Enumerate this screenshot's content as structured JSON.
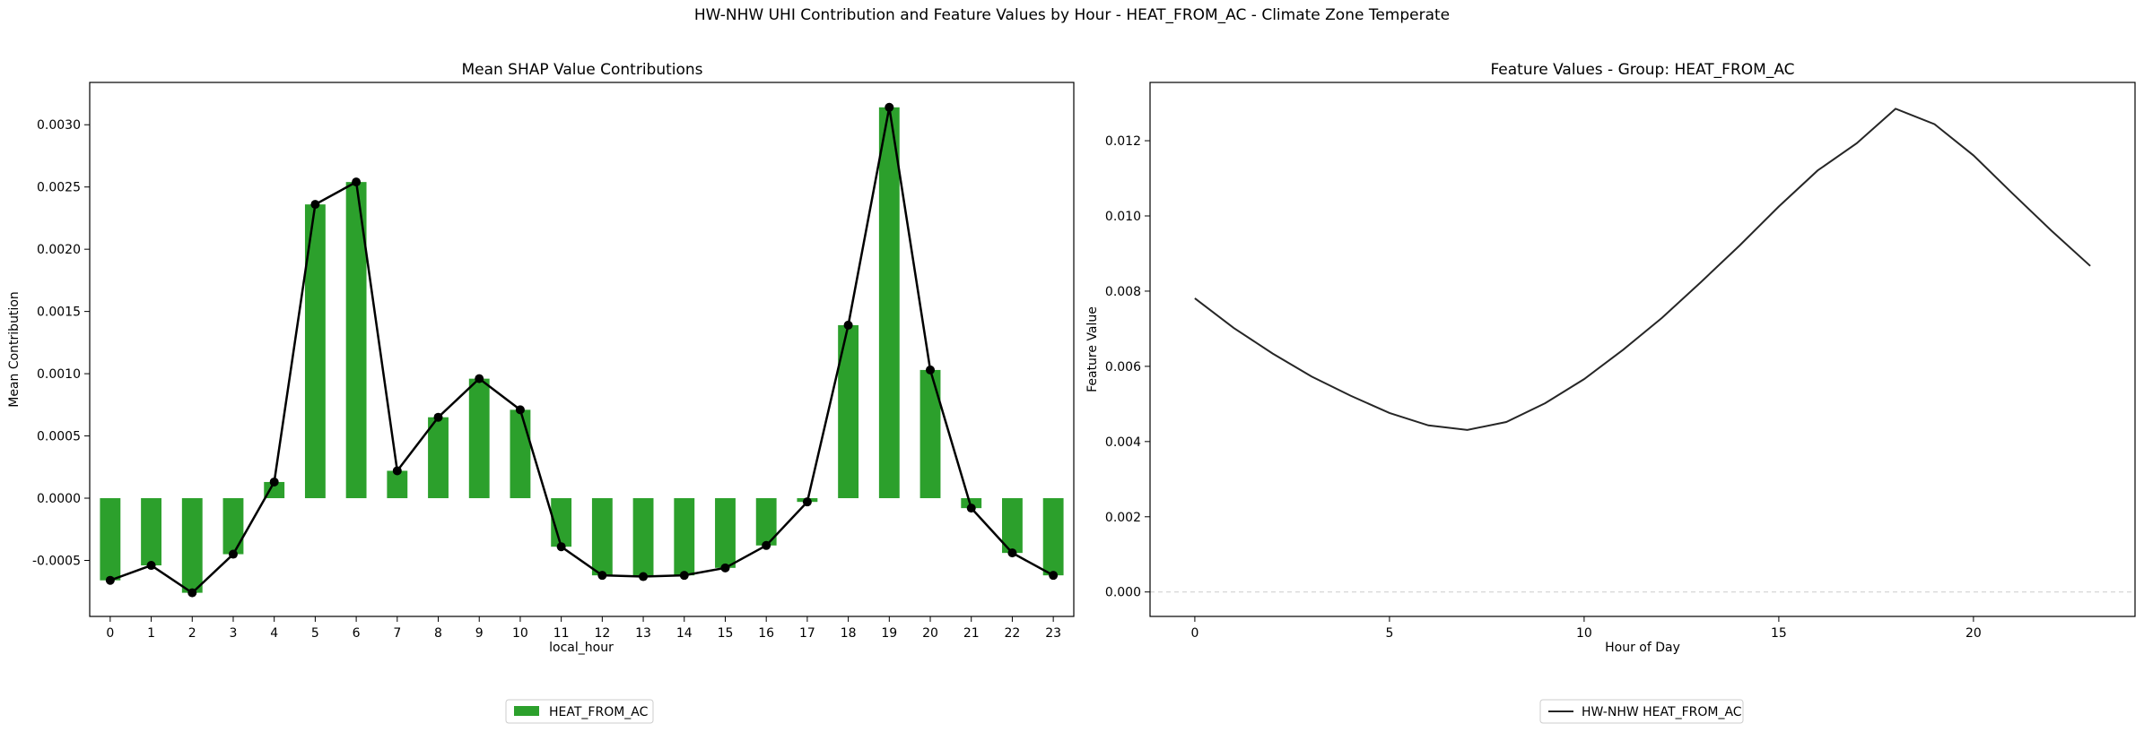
{
  "figure": {
    "title": "HW-NHW UHI Contribution and Feature Values by Hour - HEAT_FROM_AC - Climate Zone Temperate"
  },
  "chart_data": [
    {
      "type": "bar",
      "title": "Mean SHAP Value Contributions",
      "xlabel": "local_hour",
      "ylabel": "Mean Contribution",
      "categories": [
        "0",
        "1",
        "2",
        "3",
        "4",
        "5",
        "6",
        "7",
        "8",
        "9",
        "10",
        "11",
        "12",
        "13",
        "14",
        "15",
        "16",
        "17",
        "18",
        "19",
        "20",
        "21",
        "22",
        "23"
      ],
      "series": [
        {
          "name": "HEAT_FROM_AC",
          "color": "#2ca02c",
          "values": [
            -0.00066,
            -0.00054,
            -0.00076,
            -0.00045,
            0.00013,
            0.00236,
            0.00254,
            0.00022,
            0.00065,
            0.00096,
            0.00071,
            -0.00039,
            -0.00062,
            -0.00063,
            -0.00062,
            -0.00056,
            -0.00038,
            -3e-05,
            0.00139,
            0.00314,
            0.00103,
            -8e-05,
            -0.00044,
            -0.00062
          ]
        }
      ],
      "overlay_line": {
        "color": "#000000",
        "marker": "circle",
        "follows": "HEAT_FROM_AC"
      },
      "ylim": [
        -0.00095,
        0.00334
      ],
      "yticks": [
        "-0.0005",
        "0.0000",
        "0.0005",
        "0.0010",
        "0.0015",
        "0.0020",
        "0.0025",
        "0.0030"
      ],
      "yticks_values": [
        -0.0005,
        0,
        0.0005,
        0.001,
        0.0015,
        0.002,
        0.0025,
        0.003
      ],
      "legend": {
        "placement": "bottom-center",
        "entries": [
          "HEAT_FROM_AC"
        ]
      },
      "grid": false
    },
    {
      "type": "line",
      "title": "Feature Values - Group: HEAT_FROM_AC",
      "xlabel": "Hour of Day",
      "ylabel": "Feature Value",
      "x": [
        0,
        1,
        2,
        3,
        4,
        5,
        6,
        7,
        8,
        9,
        10,
        11,
        12,
        13,
        14,
        15,
        16,
        17,
        18,
        19,
        20,
        21,
        22,
        23
      ],
      "series": [
        {
          "name": "HW-NHW HEAT_FROM_AC",
          "color": "#262626",
          "values": [
            0.00781,
            0.00702,
            0.00634,
            0.00573,
            0.00522,
            0.00476,
            0.00443,
            0.00431,
            0.00452,
            0.00502,
            0.00566,
            0.00644,
            0.00729,
            0.00824,
            0.00922,
            0.01025,
            0.01121,
            0.01193,
            0.01285,
            0.01244,
            0.01161,
            0.0106,
            0.00961,
            0.00867
          ]
        }
      ],
      "xlim": [
        -1.15,
        24.15
      ],
      "ylim": [
        -0.00065,
        0.01355
      ],
      "xticks": [
        "0",
        "5",
        "10",
        "15",
        "20"
      ],
      "xticks_values": [
        0,
        5,
        10,
        15,
        20
      ],
      "yticks": [
        "0.000",
        "0.002",
        "0.004",
        "0.006",
        "0.008",
        "0.010",
        "0.012"
      ],
      "yticks_values": [
        0,
        0.002,
        0.004,
        0.006,
        0.008,
        0.01,
        0.012
      ],
      "reference_line": {
        "y": 0,
        "style": "dashed",
        "color": "#cccccc"
      },
      "legend": {
        "placement": "bottom-center",
        "entries": [
          "HW-NHW HEAT_FROM_AC"
        ]
      },
      "grid": false
    }
  ]
}
